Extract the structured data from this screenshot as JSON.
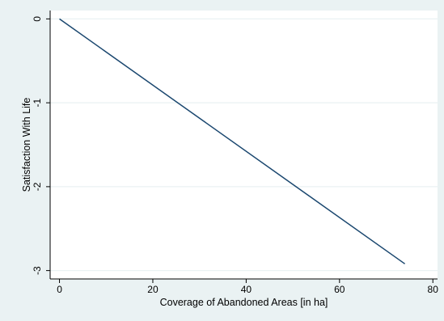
{
  "chart_data": {
    "type": "line",
    "title": "",
    "xlabel": "Coverage of Abandoned Areas [in ha]",
    "ylabel": "Satisfaction With Life",
    "xlim": [
      -2,
      81
    ],
    "ylim": [
      -3.1,
      0.1
    ],
    "xticks": [
      0,
      20,
      40,
      60,
      80
    ],
    "yticks": [
      0,
      -1,
      -2,
      -3
    ],
    "grid": "horizontal",
    "legend": "none",
    "series": [
      {
        "x": [
          0,
          74
        ],
        "y": [
          0,
          -2.92
        ]
      }
    ]
  },
  "colors": {
    "outer_background": "#eaf2f3",
    "plot_background": "#ffffff",
    "line": "#1a476f",
    "grid": "#eaf2f3",
    "axis": "#000000"
  }
}
